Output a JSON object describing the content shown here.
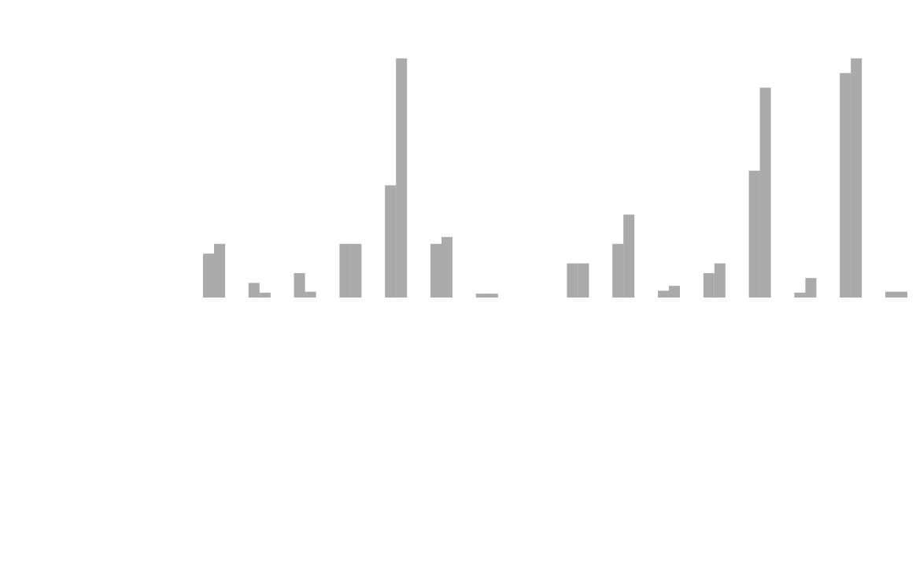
{
  "chart_data": {
    "type": "bar",
    "title": "",
    "xlabel": "",
    "ylabel": "",
    "ylim": [
      0,
      2.5
    ],
    "yticks": [
      "",
      "",
      "",
      "",
      ""
    ],
    "categories": [
      "",
      "",
      "",
      "",
      "",
      "",
      "",
      "",
      "",
      "",
      "",
      "",
      "",
      "",
      "",
      ""
    ],
    "series": [
      {
        "values": [
          0.45,
          0.15,
          0.25,
          0.55,
          1.15,
          0.55,
          0.04,
          0.0,
          0.35,
          0.55,
          0.07,
          0.25,
          1.3,
          0.05,
          2.3,
          0.06
        ]
      },
      {
        "values": [
          0.55,
          0.05,
          0.06,
          0.55,
          2.45,
          0.62,
          0.04,
          0.0,
          0.35,
          0.85,
          0.12,
          0.35,
          2.15,
          0.2,
          2.45,
          0.06
        ]
      }
    ],
    "grid": false,
    "legend": "none",
    "bar_color": "#aaaaaa",
    "text_color": "#b8b8b8"
  }
}
